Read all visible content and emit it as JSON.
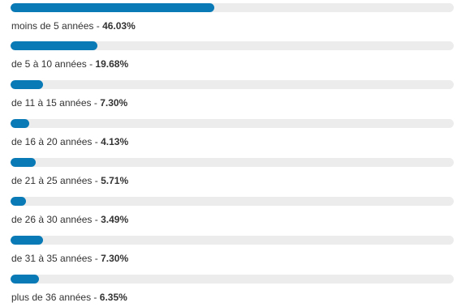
{
  "colors": {
    "bar_fill": "#0a7ab6",
    "bar_track": "#ececec",
    "text": "#333333"
  },
  "poll": {
    "separator": " - ",
    "results": [
      {
        "label": "moins de 5 années",
        "percent_text": "46.03%",
        "value": 46.03
      },
      {
        "label": "de 5 à 10 années",
        "percent_text": "19.68%",
        "value": 19.68
      },
      {
        "label": "de 11 à 15 années",
        "percent_text": "7.30%",
        "value": 7.3
      },
      {
        "label": "de 16 à 20 années",
        "percent_text": "4.13%",
        "value": 4.13
      },
      {
        "label": "de 21 à 25 années",
        "percent_text": "5.71%",
        "value": 5.71
      },
      {
        "label": "de 26 à 30 années",
        "percent_text": "3.49%",
        "value": 3.49
      },
      {
        "label": "de 31 à 35 années",
        "percent_text": "7.30%",
        "value": 7.3
      },
      {
        "label": "plus de 36 années",
        "percent_text": "6.35%",
        "value": 6.35
      }
    ]
  }
}
